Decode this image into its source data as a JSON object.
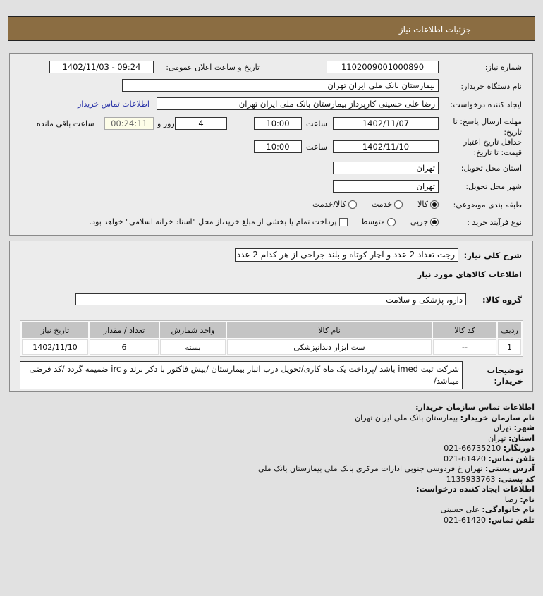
{
  "header": {
    "title": "جزئیات اطلاعات نیاز"
  },
  "form": {
    "need_number_label": "شماره نیاز:",
    "need_number": "1102009001000890",
    "announce_label": "تاریخ و ساعت اعلان عمومی:",
    "announce_value": "1402/11/03 - 09:24",
    "buyer_label": "نام دستگاه خریدار:",
    "buyer": "بیمارستان بانک ملی ایران تهران",
    "creator_label": "ایجاد کننده درخواست:",
    "creator": "رضا علی حسینی کارپرداز بیمارستان بانک ملی ایران تهران",
    "contact_link": "اطلاعات تماس خریدار",
    "deadline_label": "مهلت ارسال پاسخ: تا تاریخ:",
    "deadline_date": "1402/11/07",
    "time_label": "ساعت",
    "deadline_time": "10:00",
    "days": "4",
    "days_label": "روز و",
    "remaining": "00:24:11",
    "remaining_label": "ساعت باقي مانده",
    "validity_label": "حداقل تاریخ اعتبار قیمت: تا تاریخ:",
    "validity_date": "1402/11/10",
    "validity_time": "10:00",
    "province_label": "استان محل تحویل:",
    "province": "تهران",
    "city_label": "شهر محل تحویل:",
    "city": "تهران",
    "category_label": "طبقه بندی موضوعی:",
    "category_options": [
      "کالا",
      "خدمت",
      "کالا/خدمت"
    ],
    "category_selected": "کالا",
    "process_label": "نوع فرآیند خرید :",
    "process_options": [
      "جزیی",
      "متوسط"
    ],
    "process_selected": "جزیی",
    "payment_note": "پرداخت تمام یا بخشی از مبلغ خرید،از محل \"اسناد خزانه اسلامی\" خواهد بود."
  },
  "details": {
    "summary_label": "شرح کلي نياز:",
    "summary": "رجت تعداد 2 عدد و آچار کوتاه و بلند جراحی از هر کدام 2 عدد",
    "goods_title": "اطلاعات کالاهاي مورد نياز",
    "group_label": "گروه کالا:",
    "group": "دارو، پزشکی و سلامت",
    "table": {
      "headers": [
        "ردیف",
        "کد کالا",
        "نام کالا",
        "واحد شمارش",
        "تعداد / مقدار",
        "تاریخ نیاز"
      ],
      "rows": [
        [
          "1",
          "--",
          "ست ابزار دندانپزشکی",
          "بسته",
          "6",
          "1402/11/10"
        ]
      ]
    },
    "notes_label": "توضیحات خریدار:",
    "notes": "شرکت ثبت imed باشد /پرداخت یک ماه کاری/تحویل درب انبار بیمارستان /پیش فاکتور با ذکر برند و irc ضمیمه گردد /کد فرضی میباشد/"
  },
  "contact": {
    "title": "اطلاعات تماس سازمان خریدار:",
    "org_label": "نام سازمان خریدار:",
    "org": "بیمارستان بانک ملی ایران تهران",
    "city_label": "شهر:",
    "city": "تهران",
    "province_label": "استان:",
    "province": "تهران",
    "fax_label": "دورنگار:",
    "fax": "66735210-021",
    "phone_label": "تلفن تماس:",
    "phone": "61420-021",
    "address_label": "آدرس پستی:",
    "address": "تهران خ فردوسی جنوبی ادارات مرکزی بانک ملی بیمارستان بانک ملی",
    "postal_label": "کد پستی:",
    "postal": "1135933763",
    "creator_title": "اطلاعات ایجاد کننده درخواست:",
    "name_label": "نام:",
    "name": "رضا",
    "family_label": "نام خانوادگی:",
    "family": "علی حسینی",
    "creator_phone_label": "تلفن تماس:",
    "creator_phone": "61420-021"
  }
}
